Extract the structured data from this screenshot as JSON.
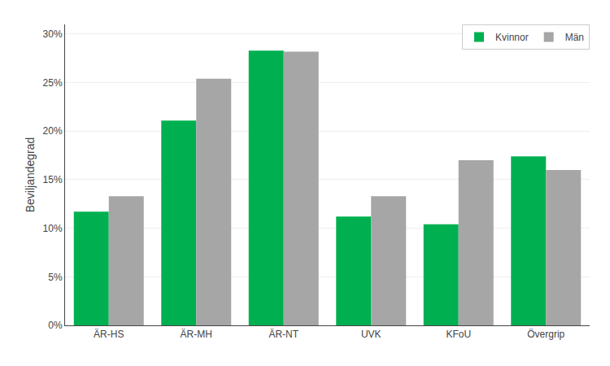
{
  "chart_data": {
    "type": "bar",
    "categories": [
      "ÄR-HS",
      "ÄR-MH",
      "ÄR-NT",
      "UVK",
      "KFoU",
      "Övergrip"
    ],
    "series": [
      {
        "name": "Kvinnor",
        "color": "#00b050",
        "values": [
          0.117,
          0.211,
          0.283,
          0.112,
          0.104,
          0.174
        ]
      },
      {
        "name": "Män",
        "color": "#a6a6a6",
        "values": [
          0.133,
          0.254,
          0.282,
          0.133,
          0.17,
          0.16
        ]
      }
    ],
    "ylabel": "Beviljandegrad",
    "ylim": [
      0,
      0.31
    ],
    "yticks": [
      {
        "value": 0,
        "label": "0%"
      },
      {
        "value": 0.05,
        "label": "5%"
      },
      {
        "value": 0.1,
        "label": "10%"
      },
      {
        "value": 0.15,
        "label": "15%"
      },
      {
        "value": 0.2,
        "label": "20%"
      },
      {
        "value": 0.25,
        "label": "25%"
      },
      {
        "value": 0.3,
        "label": "30%"
      }
    ],
    "grid": true,
    "legend": "upper right"
  }
}
